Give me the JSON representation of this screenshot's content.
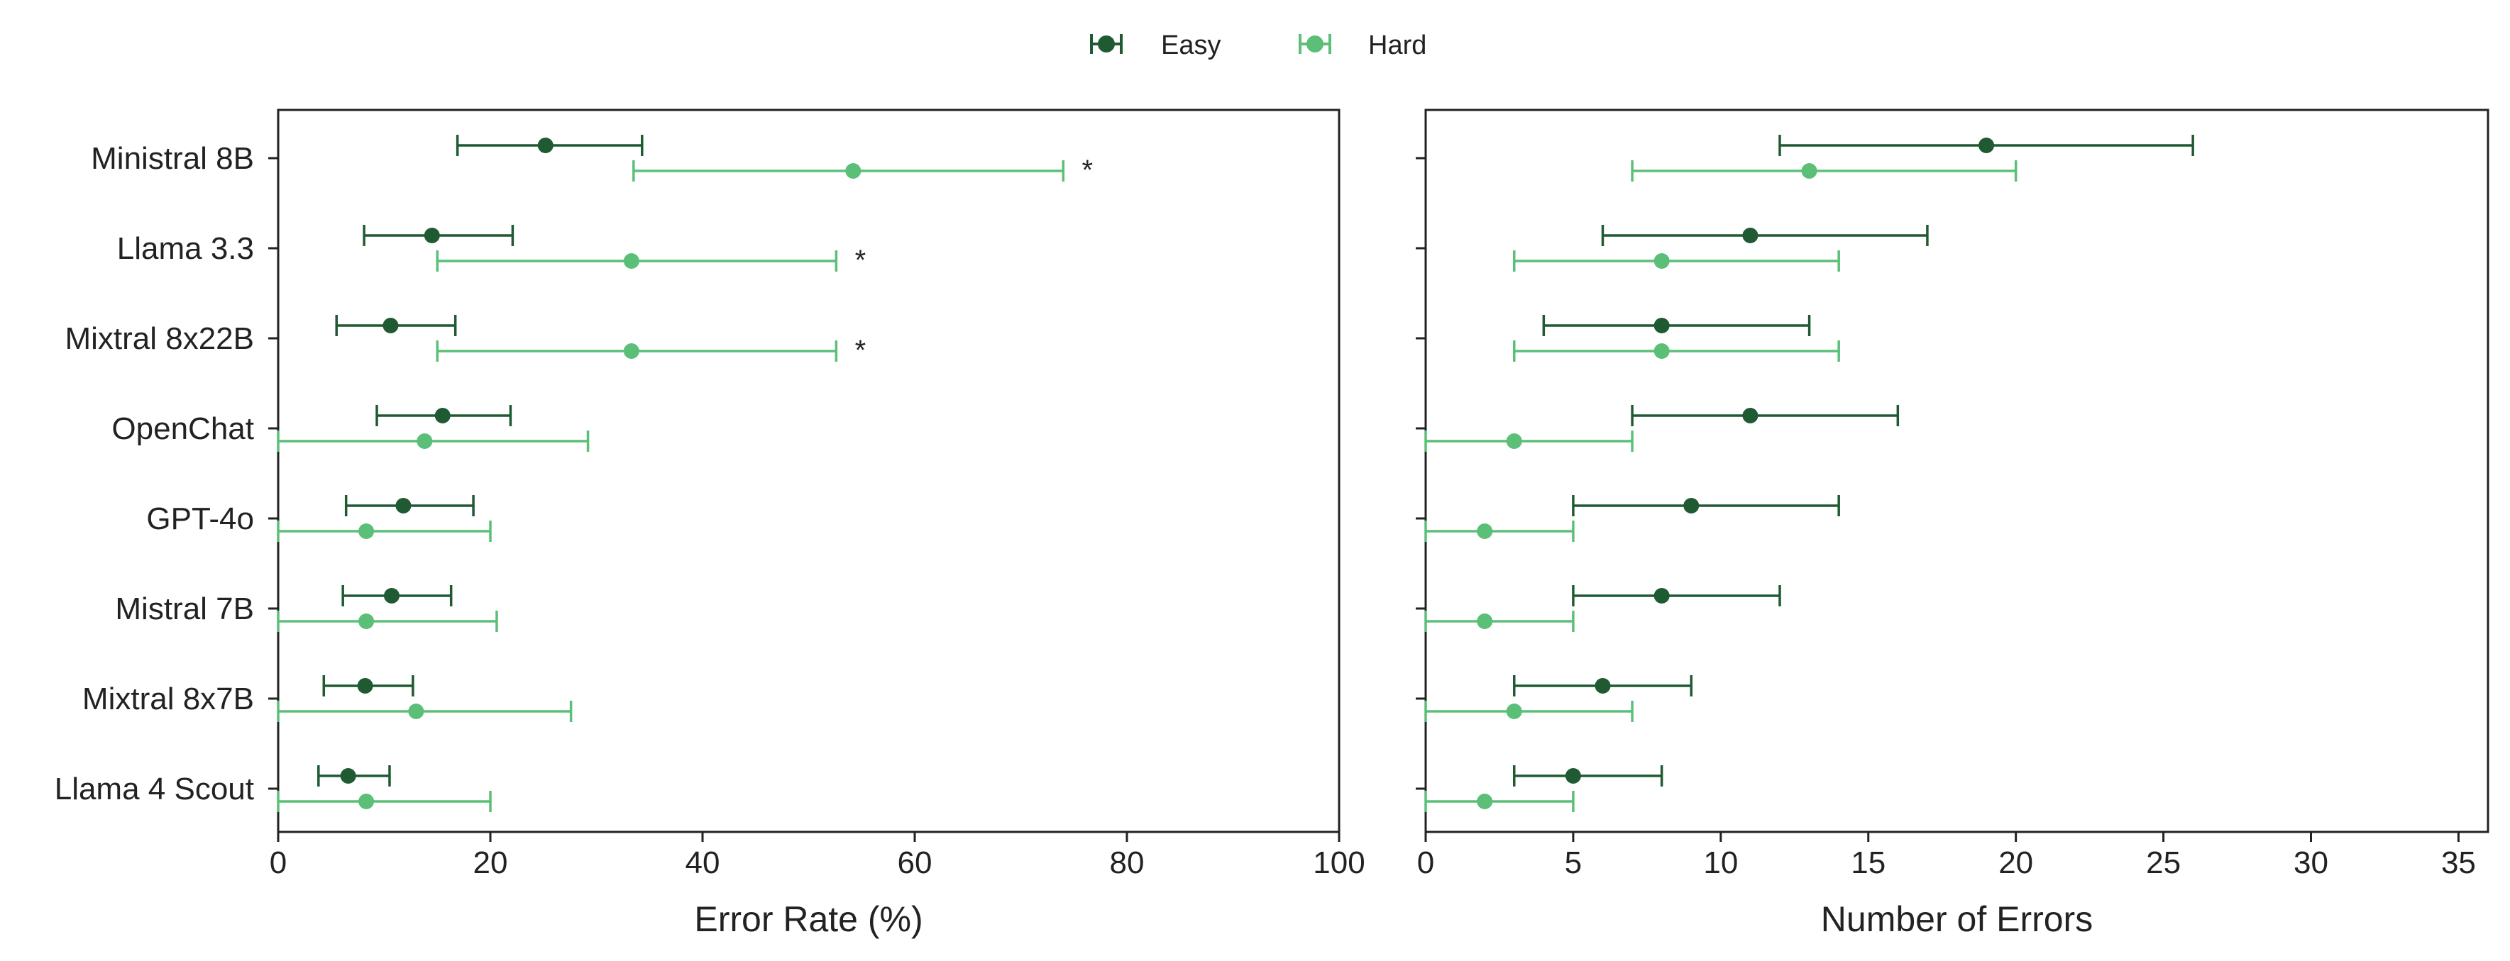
{
  "legend": {
    "entries": [
      {
        "label": "Easy",
        "color": "#1f5a32"
      },
      {
        "label": "Hard",
        "color": "#5bbf78"
      }
    ]
  },
  "chart_data": [
    {
      "type": "errorbar",
      "xlabel": "Error Rate (%)",
      "xlim": [
        0,
        100
      ],
      "xticks": [
        0,
        20,
        40,
        60,
        80,
        100
      ],
      "categories": [
        "Ministral 8B",
        "Llama 3.3",
        "Mixtral 8x22B",
        "OpenChat",
        "GPT-4o",
        "Mistral 7B",
        "Mixtral 8x7B",
        "Llama 4 Scout"
      ],
      "series": [
        {
          "name": "Easy",
          "color": "#1f5a32",
          "values": [
            25.2,
            14.5,
            10.6,
            15.5,
            11.8,
            10.7,
            8.2,
            6.6
          ],
          "lower": [
            16.9,
            8.1,
            5.5,
            9.3,
            6.4,
            6.1,
            4.3,
            3.8
          ],
          "upper": [
            34.3,
            22.1,
            16.7,
            21.9,
            18.4,
            16.3,
            12.7,
            10.5
          ]
        },
        {
          "name": "Hard",
          "color": "#5bbf78",
          "values": [
            54.2,
            33.3,
            33.3,
            13.8,
            8.3,
            8.3,
            13.0,
            8.3
          ],
          "lower": [
            33.5,
            15.0,
            15.0,
            0.0,
            0.0,
            0.0,
            0.0,
            0.0
          ],
          "upper": [
            74.0,
            52.6,
            52.6,
            29.2,
            20.0,
            20.6,
            27.6,
            20.0
          ]
        }
      ],
      "annotations": [
        {
          "category": "Ministral 8B",
          "series": "Hard",
          "text": "*"
        },
        {
          "category": "Llama 3.3",
          "series": "Hard",
          "text": "*"
        },
        {
          "category": "Mixtral 8x22B",
          "series": "Hard",
          "text": "*"
        }
      ]
    },
    {
      "type": "errorbar",
      "xlabel": "Number of Errors",
      "xlim": [
        0,
        36
      ],
      "xticks": [
        0,
        5,
        10,
        15,
        20,
        25,
        30,
        35
      ],
      "categories": [
        "Ministral 8B",
        "Llama 3.3",
        "Mixtral 8x22B",
        "OpenChat",
        "GPT-4o",
        "Mistral 7B",
        "Mixtral 8x7B",
        "Llama 4 Scout"
      ],
      "series": [
        {
          "name": "Easy",
          "color": "#1f5a32",
          "values": [
            19,
            11,
            8,
            11,
            9,
            8,
            6,
            5
          ],
          "lower": [
            12,
            6,
            4,
            7,
            5,
            5,
            3,
            3
          ],
          "upper": [
            26,
            17,
            13,
            16,
            14,
            12,
            9,
            8
          ]
        },
        {
          "name": "Hard",
          "color": "#5bbf78",
          "values": [
            13,
            8,
            8,
            3,
            2,
            2,
            3,
            2
          ],
          "lower": [
            7,
            3,
            3,
            0,
            0,
            0,
            0,
            0
          ],
          "upper": [
            20,
            14,
            14,
            7,
            5,
            5,
            7,
            5
          ]
        }
      ]
    }
  ]
}
